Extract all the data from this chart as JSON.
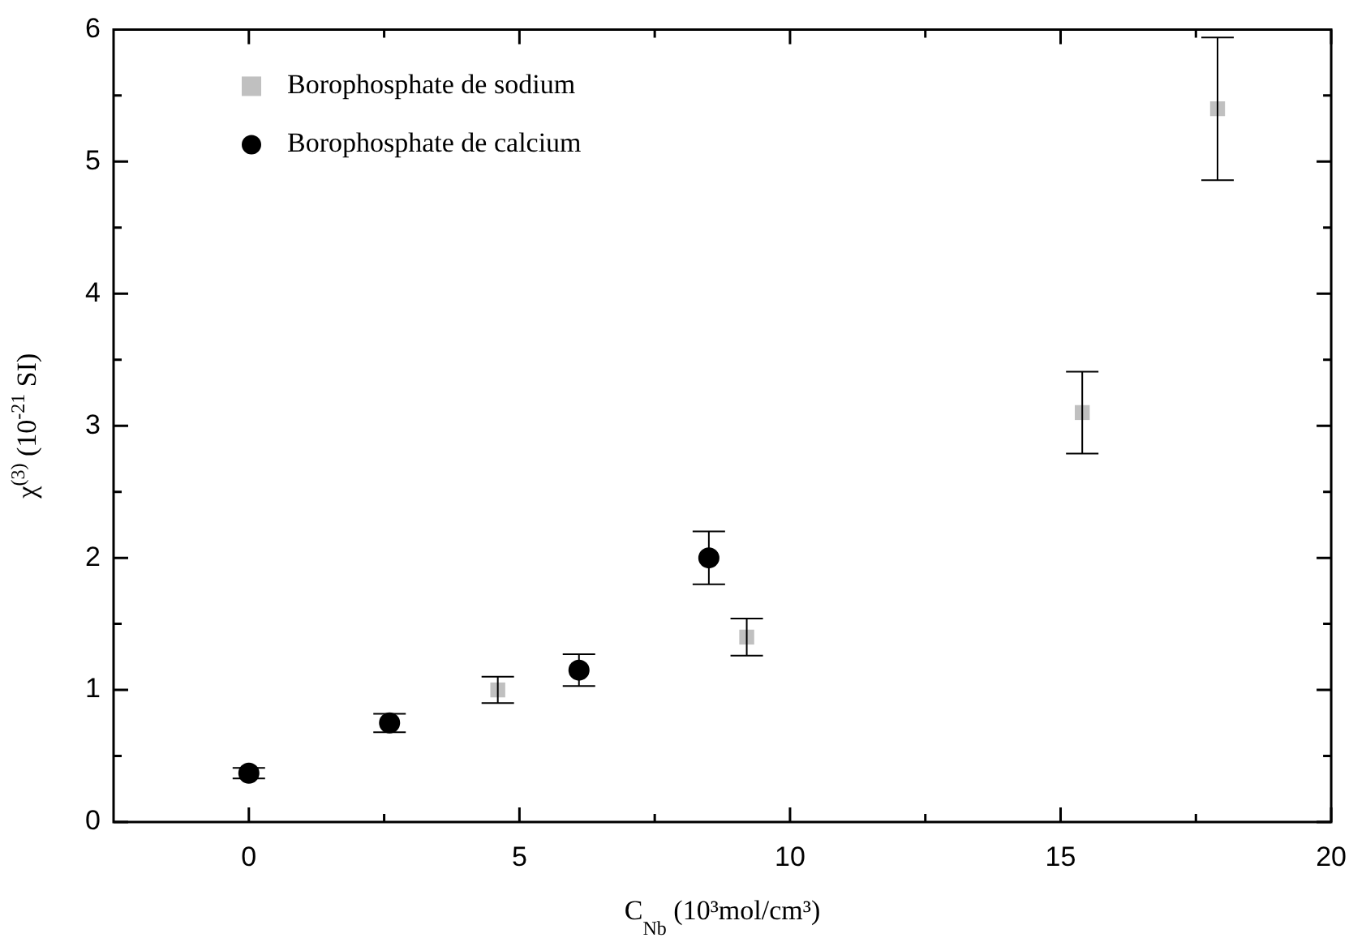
{
  "chart_data": {
    "type": "scatter",
    "xlabel": "C$_{Nb}$ (10³mol/cm³)",
    "ylabel": "χ$^{(3)}$ (10$^{-21}$ SI)",
    "xlim": [
      -2.5,
      20
    ],
    "xticks": [
      0,
      {
        "value": 2.5,
        "label": null
      },
      5,
      {
        "value": 7.5,
        "label": null
      },
      10,
      {
        "value": 12.5,
        "label": null
      },
      15,
      {
        "value": 17.5,
        "label": null
      },
      20
    ],
    "ylim": [
      0,
      6
    ],
    "yticks": [
      0,
      {
        "value": 0.5,
        "label": null
      },
      1,
      {
        "value": 1.5,
        "label": null
      },
      2,
      {
        "value": 2.5,
        "label": null
      },
      3,
      {
        "value": 3.5,
        "label": null
      },
      4,
      {
        "value": 4.5,
        "label": null
      },
      5,
      {
        "value": 5.5,
        "label": null
      },
      6
    ],
    "legend": "top left",
    "series": [
      {
        "name": "Borophosphate de sodium",
        "color": "#c0c0c0",
        "marker": "square",
        "x": [
          4.6,
          9.2,
          15.4,
          17.9
        ],
        "values": [
          1.0,
          1.4,
          3.1,
          5.4
        ],
        "errors": [
          0.1,
          0.14,
          0.31,
          0.54
        ]
      },
      {
        "name": "Borophosphate de calcium",
        "color": "#000000",
        "marker": "circle",
        "x": [
          0,
          2.6,
          6.1,
          8.5
        ],
        "values": [
          0.37,
          0.75,
          1.15,
          2.0
        ],
        "errors": [
          0.04,
          0.07,
          0.12,
          0.2
        ]
      }
    ]
  }
}
